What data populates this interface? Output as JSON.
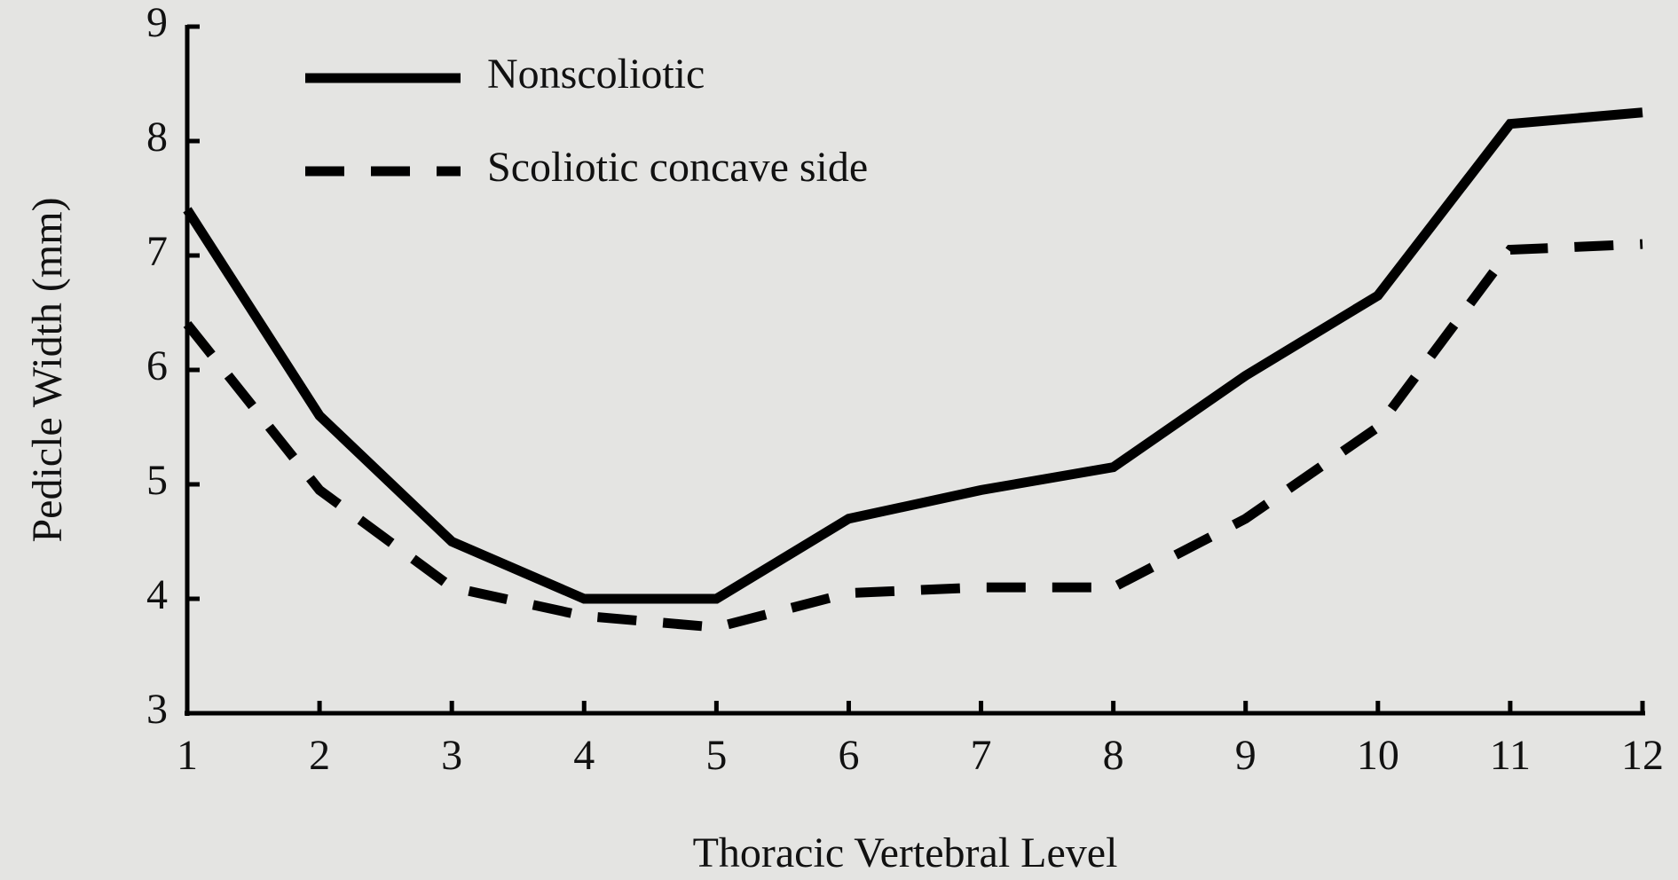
{
  "chart_data": {
    "type": "line",
    "x_label": "Thoracic Vertebral Level",
    "y_label": "Pedicle Width (mm)",
    "x": [
      1,
      2,
      3,
      4,
      5,
      6,
      7,
      8,
      9,
      10,
      11,
      12
    ],
    "series": [
      {
        "name": "Nonscoliotic",
        "color": "#000000",
        "style": "solid",
        "values": [
          7.4,
          5.6,
          4.5,
          4.0,
          4.0,
          4.7,
          4.95,
          5.15,
          5.95,
          6.65,
          8.15,
          8.25
        ]
      },
      {
        "name": "Scoliotic concave side",
        "color": "#000000",
        "style": "dashed",
        "values": [
          6.4,
          4.95,
          4.1,
          3.85,
          3.75,
          4.05,
          4.1,
          4.1,
          4.7,
          5.5,
          7.05,
          7.1
        ]
      }
    ],
    "xlim": [
      1,
      12
    ],
    "xticks": [
      1,
      2,
      3,
      4,
      5,
      6,
      7,
      8,
      9,
      10,
      11,
      12
    ],
    "ylim": [
      3,
      9
    ],
    "yticks": [
      3,
      4,
      5,
      6,
      7,
      8,
      9
    ],
    "grid": false,
    "legend": "top-left"
  }
}
